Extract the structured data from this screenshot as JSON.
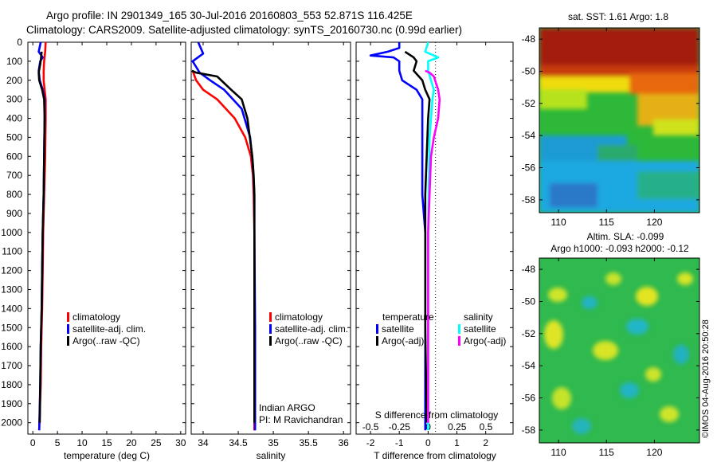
{
  "header": {
    "line1": "Argo profile: IN 2901349_165 30-Jul-2016 20160803_553 52.871S 116.425E",
    "line2": "Climatology: CARS2009. Satellite-adjusted climatology: synTS_20160730.nc (0.99d earlier)"
  },
  "colors": {
    "climatology": "#ff0000",
    "satellite": "#0000ff",
    "argo": "#000000",
    "salinity_satellite": "#00ffff",
    "salinity_argo": "#ff00ff"
  },
  "depth_ticks": [
    "0",
    "100",
    "200",
    "300",
    "400",
    "500",
    "600",
    "700",
    "800",
    "900",
    "1000",
    "1100",
    "1200",
    "1300",
    "1400",
    "1500",
    "1600",
    "1700",
    "1800",
    "1900",
    "2000"
  ],
  "legend_profile": [
    "climatology",
    "satellite-adj. clim.",
    "Argo(..raw -QC)"
  ],
  "info": {
    "line1": "Indian ARGO",
    "line2": "PI: M Ravichandran"
  },
  "diff_panel": {
    "temp_header": "temperature",
    "sal_header": "salinity",
    "temp_items": [
      "satellite",
      "Argo(-adj)"
    ],
    "sal_items": [
      "satellite",
      "Argo(-adj)"
    ],
    "top_axis_label": "S difference from climatology"
  },
  "map_sst": {
    "title": "sat. SST: 1.61 Argo: 1.8",
    "yticks": [
      "-48",
      "-50",
      "-52",
      "-54",
      "-56",
      "-58"
    ],
    "xticks": [
      "110",
      "115",
      "120"
    ]
  },
  "map_sla": {
    "title1": "Altim. SLA: -0.099",
    "title2": "Argo h1000: -0.093 h2000: -0.12",
    "yticks": [
      "-48",
      "-50",
      "-52",
      "-54",
      "-56",
      "-58"
    ],
    "xticks": [
      "110",
      "115",
      "120"
    ]
  },
  "credit": "©IMOS 04-Aug-2016 20:50:28",
  "chart_data": [
    {
      "type": "line",
      "title": "",
      "xlabel": "temperature (deg C)",
      "ylabel": "",
      "xlim": [
        -1,
        31
      ],
      "ylim": [
        2060,
        0
      ],
      "xticks": [
        "0",
        "5",
        "10",
        "15",
        "20",
        "25",
        "30"
      ],
      "xtick_values": [
        0,
        5,
        10,
        15,
        20,
        25,
        30
      ],
      "series": [
        {
          "name": "climatology",
          "color": "#ff0000",
          "points": [
            [
              2.6,
              0
            ],
            [
              2.5,
              50
            ],
            [
              2.3,
              100
            ],
            [
              2.2,
              150
            ],
            [
              2.2,
              200
            ],
            [
              2.4,
              250
            ],
            [
              2.6,
              300
            ],
            [
              2.6,
              400
            ],
            [
              2.5,
              600
            ],
            [
              2.3,
              800
            ],
            [
              2.1,
              1000
            ],
            [
              2.0,
              1200
            ],
            [
              1.9,
              1400
            ],
            [
              1.7,
              1600
            ],
            [
              1.6,
              1800
            ],
            [
              1.3,
              2040
            ]
          ]
        },
        {
          "name": "satellite-adj. clim.",
          "color": "#0000ff",
          "points": [
            [
              1.6,
              0
            ],
            [
              1.2,
              50
            ],
            [
              2.0,
              80
            ],
            [
              1.5,
              100
            ],
            [
              1.2,
              150
            ],
            [
              1.4,
              200
            ],
            [
              2.0,
              250
            ],
            [
              2.4,
              300
            ],
            [
              2.4,
              400
            ],
            [
              2.3,
              600
            ],
            [
              2.2,
              800
            ],
            [
              2.0,
              1000
            ],
            [
              1.9,
              1200
            ],
            [
              1.8,
              1400
            ],
            [
              1.6,
              1600
            ],
            [
              1.5,
              1800
            ],
            [
              1.3,
              2040
            ]
          ]
        },
        {
          "name": "Argo(..raw -QC)",
          "color": "#000000",
          "points": [
            [
              1.8,
              50
            ],
            [
              1.6,
              100
            ],
            [
              1.2,
              160
            ],
            [
              1.3,
              200
            ],
            [
              1.9,
              250
            ],
            [
              2.3,
              300
            ],
            [
              2.4,
              400
            ],
            [
              2.3,
              600
            ],
            [
              2.2,
              800
            ],
            [
              2.0,
              1000
            ],
            [
              1.9,
              1200
            ],
            [
              1.8,
              1400
            ],
            [
              1.6,
              1600
            ],
            [
              1.5,
              1800
            ],
            [
              1.4,
              2000
            ]
          ]
        }
      ]
    },
    {
      "type": "line",
      "title": "",
      "xlabel": "salinity",
      "ylabel": "",
      "xlim": [
        33.83,
        36.1
      ],
      "ylim": [
        2060,
        0
      ],
      "xticks": [
        "34",
        "34.5",
        "35",
        "35.5",
        "36"
      ],
      "xtick_values": [
        34,
        34.5,
        35,
        35.5,
        36
      ],
      "series": [
        {
          "name": "climatology",
          "color": "#ff0000",
          "points": [
            [
              33.85,
              150
            ],
            [
              33.9,
              200
            ],
            [
              34.0,
              250
            ],
            [
              34.2,
              300
            ],
            [
              34.45,
              400
            ],
            [
              34.6,
              500
            ],
            [
              34.68,
              600
            ],
            [
              34.71,
              700
            ],
            [
              34.72,
              800
            ],
            [
              34.73,
              1000
            ],
            [
              34.73,
              1500
            ],
            [
              34.73,
              2040
            ]
          ]
        },
        {
          "name": "satellite-adj. clim.",
          "color": "#0000ff",
          "points": [
            [
              33.93,
              0
            ],
            [
              34.0,
              60
            ],
            [
              33.85,
              100
            ],
            [
              33.9,
              130
            ],
            [
              33.95,
              160
            ],
            [
              34.1,
              200
            ],
            [
              34.3,
              250
            ],
            [
              34.55,
              350
            ],
            [
              34.67,
              500
            ],
            [
              34.71,
              650
            ],
            [
              34.73,
              800
            ],
            [
              34.73,
              1000
            ],
            [
              34.74,
              1500
            ],
            [
              34.74,
              2040
            ]
          ]
        },
        {
          "name": "Argo(..raw -QC)",
          "color": "#000000",
          "points": [
            [
              33.84,
              150
            ],
            [
              33.9,
              160
            ],
            [
              34.2,
              180
            ],
            [
              34.4,
              250
            ],
            [
              34.55,
              300
            ],
            [
              34.63,
              400
            ],
            [
              34.7,
              600
            ],
            [
              34.72,
              700
            ],
            [
              34.73,
              800
            ],
            [
              34.73,
              1000
            ],
            [
              34.73,
              1500
            ],
            [
              34.73,
              2000
            ]
          ]
        }
      ]
    },
    {
      "type": "line",
      "title": "",
      "xlabel": "T difference from climatology",
      "ylabel": "",
      "xlim": [
        -2.5,
        2.95
      ],
      "ylim": [
        2060,
        0
      ],
      "xticks": [
        "-2",
        "-1",
        "0",
        "1",
        "2"
      ],
      "xtick_values": [
        -2,
        -1,
        0,
        1,
        2
      ],
      "top_axis": {
        "label": "S difference from climatology",
        "ticks": [
          "-0.5",
          "-0.25",
          "0",
          "0.25",
          "0.5"
        ],
        "tick_values": [
          -0.5,
          -0.25,
          0,
          0.25,
          0.5
        ]
      },
      "series": [
        {
          "name": "temperature satellite",
          "color": "#0000ff",
          "points": [
            [
              -1.0,
              0
            ],
            [
              -1.0,
              30
            ],
            [
              -1.4,
              50
            ],
            [
              -2.0,
              70
            ],
            [
              -1.2,
              80
            ],
            [
              -1.0,
              100
            ],
            [
              -1.0,
              150
            ],
            [
              -0.9,
              200
            ],
            [
              -0.4,
              250
            ],
            [
              -0.2,
              300
            ],
            [
              -0.2,
              500
            ],
            [
              -0.2,
              800
            ],
            [
              -0.1,
              1000
            ],
            [
              -0.1,
              1500
            ],
            [
              -0.1,
              2040
            ]
          ]
        },
        {
          "name": "temperature Argo(-adj)",
          "color": "#000000",
          "points": [
            [
              -0.8,
              50
            ],
            [
              -0.5,
              80
            ],
            [
              -0.4,
              100
            ],
            [
              -0.5,
              150
            ],
            [
              -0.2,
              200
            ],
            [
              -0.1,
              250
            ],
            [
              0.05,
              300
            ],
            [
              0.0,
              400
            ],
            [
              -0.05,
              600
            ],
            [
              -0.1,
              800
            ],
            [
              -0.1,
              1000
            ],
            [
              -0.1,
              1500
            ],
            [
              -0.05,
              2000
            ]
          ]
        },
        {
          "name": "salinity satellite",
          "color": "#00ffff",
          "points": [
            [
              0.0,
              0
            ],
            [
              -0.1,
              50
            ],
            [
              0.35,
              80
            ],
            [
              0.0,
              100
            ],
            [
              0.0,
              150
            ],
            [
              0.1,
              200
            ],
            [
              0.2,
              250
            ],
            [
              0.15,
              300
            ],
            [
              0.1,
              400
            ],
            [
              0.05,
              500
            ],
            [
              0.02,
              800
            ],
            [
              0.0,
              1000
            ],
            [
              0.0,
              2040
            ]
          ]
        },
        {
          "name": "salinity Argo(-adj)",
          "color": "#ff00ff",
          "points": [
            [
              -0.1,
              150
            ],
            [
              0.05,
              160
            ],
            [
              0.2,
              180
            ],
            [
              0.35,
              250
            ],
            [
              0.4,
              300
            ],
            [
              0.35,
              400
            ],
            [
              0.2,
              500
            ],
            [
              0.1,
              600
            ],
            [
              0.05,
              800
            ],
            [
              0.0,
              1000
            ],
            [
              0.0,
              1500
            ],
            [
              0.0,
              2000
            ]
          ]
        }
      ]
    }
  ]
}
